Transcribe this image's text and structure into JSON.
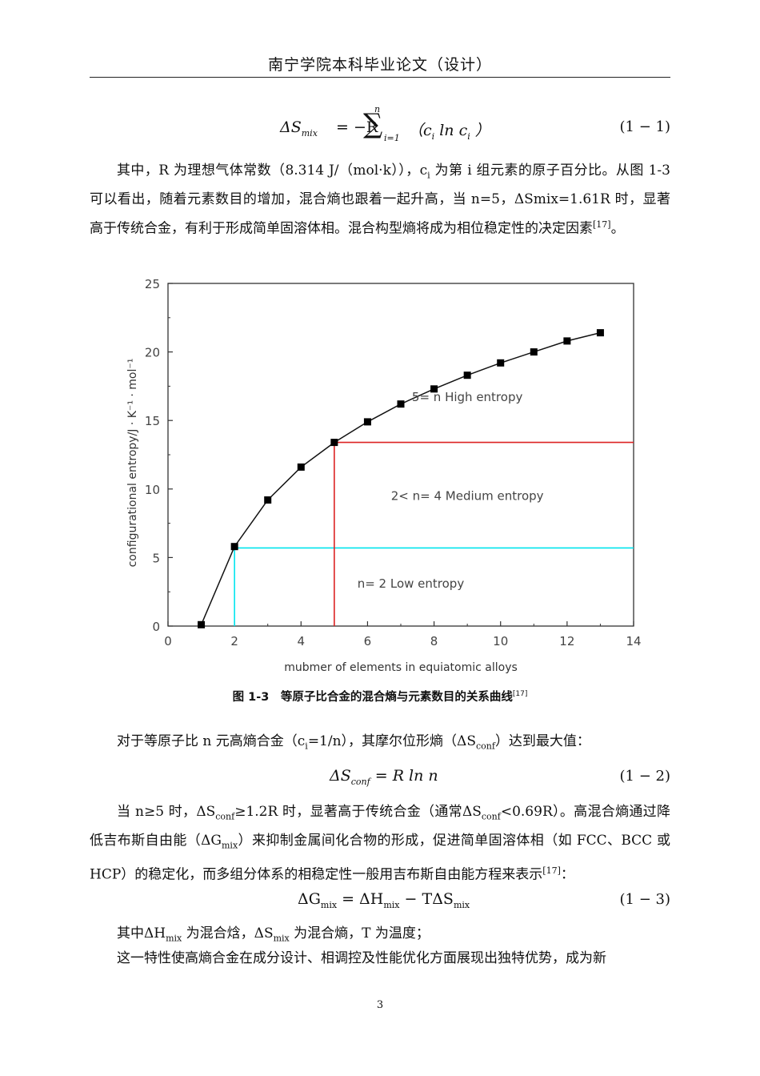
{
  "header": "南宁学院本科毕业论文（设计）",
  "equations": [
    {
      "latex": "ΔS_mix = −R ∑_{i=1}^{n} (c_i ln c_i)",
      "lhs": "ΔS",
      "lhs_sub": "mix",
      "rhs_pre": "= −R",
      "sum_top": "n",
      "sum_bottom": "i=1",
      "rhs_post": "（c",
      "post_sub": "i",
      "post_mid": " ln c",
      "post_sub2": "i",
      "post_end": " ）",
      "number": "(1 − 1)"
    },
    {
      "lhs": "ΔS",
      "lhs_sub": "conf",
      "rhs": " = R ln n",
      "number": "(1 − 2)"
    },
    {
      "lhs": "ΔG",
      "lhs_sub": "mix",
      "rhs1": " = ΔH",
      "rhs1_sub": "mix",
      "rhs2": " − TΔS",
      "rhs2_sub": "mix",
      "number": "(1 − 3)"
    }
  ],
  "para1": {
    "a": "其中，R 为理想气体常数（8.314 J/（mol·k）），c",
    "a_sub": "i",
    "b": " 为第 i 组元素的原子百分比。从图 1-3 可以看出，随着元素数目的增加，混合熵也跟着一起升高，当 n=5，ΔSmix=1.61R 时，显著高于传统合金，有利于形成简单固溶体相。混合构型熵将成为相位稳定性的决定因素",
    "ref": "[17]",
    "end": "。"
  },
  "caption": {
    "text": "图 1-3　等原子比合金的混合熵与元素数目的关系曲线",
    "ref": "[17]"
  },
  "para2": {
    "a": "对于等原子比 n 元高熵合金（c",
    "a_sub": "i",
    "b": "=1/n），其摩尔位形熵（ΔS",
    "b_sub": "conf",
    "c": "）达到最大值："
  },
  "para3": {
    "a": "当 n≥5 时，ΔS",
    "a_sub": "conf",
    "b": "≥1.2R 时，显著高于传统合金（通常ΔS",
    "b_sub": "conf",
    "c": "<0.69R）。高混合熵通过降低吉布斯自由能（ΔG",
    "c_sub": "mix",
    "d": "）来抑制金属间化合物的形成，促进简单固溶体相（如 FCC、BCC 或 HCP）的稳定化，而多组分体系的相稳定性一般用吉布斯自由能方程来表示",
    "ref": "[17]",
    "end": "："
  },
  "para4": {
    "a": "其中ΔH",
    "a_sub": "mix",
    "b": " 为混合焓，ΔS",
    "b_sub": "mix",
    "c": " 为混合熵，T 为温度；"
  },
  "para5": "这一特性使高熵合金在成分设计、相调控及性能优化方面展现出独特优势，成为新",
  "page_number": "3",
  "chart_data": {
    "type": "line",
    "x": [
      1,
      2,
      3,
      4,
      5,
      6,
      7,
      8,
      9,
      10,
      11,
      12,
      13
    ],
    "series": [
      {
        "values": [
          0.1,
          5.8,
          9.2,
          11.6,
          13.4,
          14.9,
          16.2,
          17.3,
          18.3,
          19.2,
          20.0,
          20.8,
          21.4
        ]
      }
    ],
    "xlabel": "mubmer of elements in equiatomic alloys",
    "ylabel": "configurational entropy/J · K⁻¹ · mol⁻¹",
    "xlim": [
      0,
      14
    ],
    "ylim": [
      0,
      25
    ],
    "xticks": [
      "0",
      "2",
      "4",
      "6",
      "8",
      "10",
      "12",
      "14"
    ],
    "yticks": [
      "0",
      "5",
      "10",
      "15",
      "20",
      "25"
    ],
    "annotations": [
      {
        "text": "5= n High entropy"
      },
      {
        "text": "2< n= 4 Medium entropy"
      },
      {
        "text": "n= 2 Low entropy"
      }
    ],
    "guides": [
      {
        "color": "#00e5ee",
        "x": 2,
        "y": 5.7
      },
      {
        "color": "#dd2222",
        "x": 5,
        "y": 13.4
      }
    ],
    "grid": false,
    "legend": "none"
  }
}
